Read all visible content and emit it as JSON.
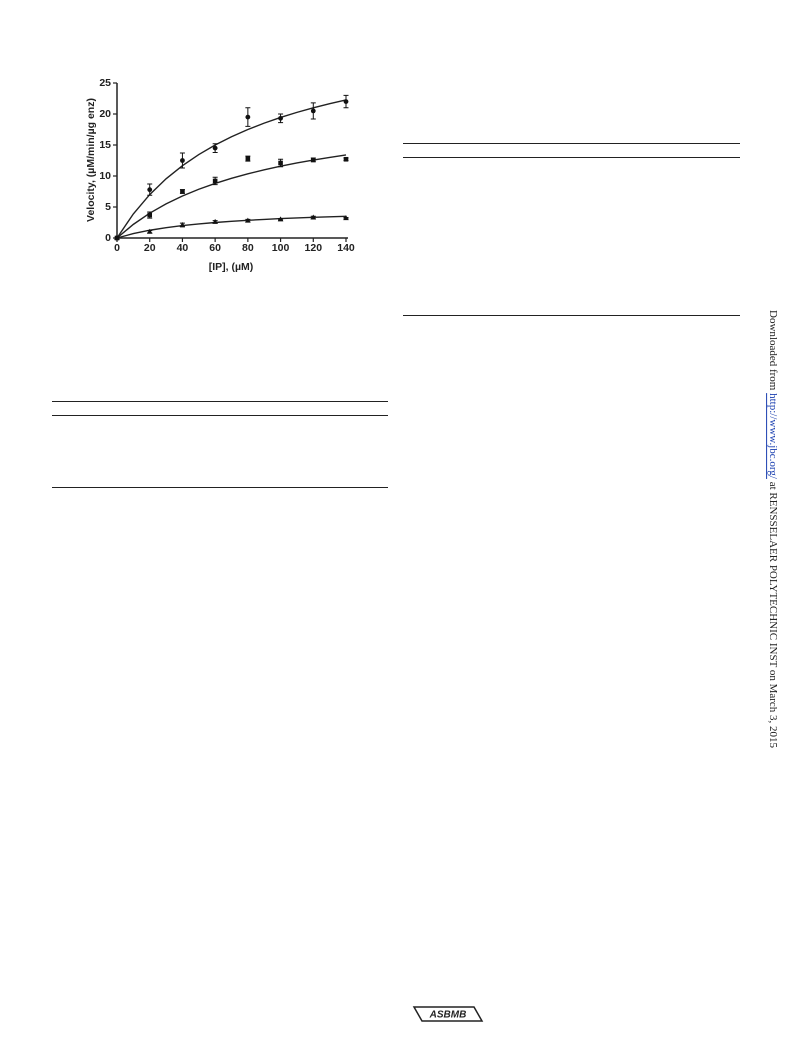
{
  "chart_data": {
    "type": "scatter",
    "xlabel": "[IP], (µM)",
    "ylabel": "Velocity, (µM/min/µg enz)",
    "x": [
      0,
      20,
      40,
      60,
      80,
      100,
      120,
      140
    ],
    "series": [
      {
        "marker": "circle",
        "color": "#111111",
        "values": [
          0,
          7.8,
          12.5,
          14.5,
          19.5,
          19.3,
          20.5,
          22
        ],
        "errors": [
          null,
          0.9,
          1.2,
          0.7,
          1.5,
          0.7,
          1.3,
          1.0
        ]
      },
      {
        "marker": "square",
        "color": "#111111",
        "values": [
          0,
          3.7,
          7.5,
          9.2,
          12.8,
          12.1,
          12.6,
          12.7
        ],
        "errors": [
          null,
          0.5,
          0.3,
          0.6,
          0.4,
          0.6,
          0.3,
          0.2
        ]
      },
      {
        "marker": "triangle",
        "color": "#111111",
        "values": [
          0,
          1.0,
          2.1,
          2.6,
          2.8,
          3.0,
          3.3,
          3.2
        ],
        "errors": [
          null,
          0.2,
          0.3,
          0.2,
          0.2,
          0.1,
          0.2,
          0.1
        ]
      }
    ],
    "fits": [
      {
        "x": [
          0,
          10,
          20,
          30,
          40,
          50,
          60,
          70,
          80,
          90,
          100,
          110,
          120,
          130,
          140
        ],
        "values": [
          0,
          3.89,
          7,
          9.55,
          11.67,
          13.46,
          15,
          16.33,
          17.5,
          18.53,
          19.44,
          20.26,
          21,
          21.67,
          22.27
        ]
      },
      {
        "x": [
          0,
          10,
          20,
          30,
          40,
          50,
          60,
          70,
          80,
          90,
          100,
          110,
          120,
          130,
          140
        ],
        "values": [
          0,
          2.2,
          4,
          5.5,
          6.77,
          7.86,
          8.8,
          9.63,
          10.35,
          11,
          11.58,
          12.1,
          12.57,
          13,
          13.39
        ]
      },
      {
        "x": [
          0,
          10,
          20,
          30,
          40,
          50,
          60,
          70,
          80,
          90,
          100,
          110,
          120,
          130,
          140
        ],
        "values": [
          0,
          0.71,
          1.25,
          1.67,
          2,
          2.27,
          2.5,
          2.69,
          2.86,
          3,
          3.13,
          3.24,
          3.33,
          3.42,
          3.5
        ]
      }
    ],
    "xlim": [
      0,
      140
    ],
    "ylim": [
      0,
      25
    ],
    "xticks": [
      0,
      20,
      40,
      60,
      80,
      100,
      120,
      140
    ],
    "yticks": [
      0,
      5,
      10,
      15,
      20,
      25
    ]
  },
  "side_note": {
    "prefix": "Downloaded from",
    "link": "http://www.jbc.org/",
    "suffix": "at RENSSELAER POLYTECHNIC INST on March 3, 2015"
  },
  "footer": {
    "logo": "ASBMB"
  }
}
